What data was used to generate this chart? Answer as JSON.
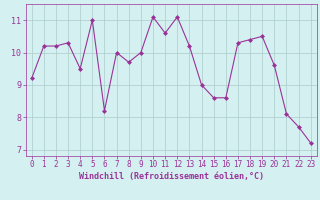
{
  "x": [
    0,
    1,
    2,
    3,
    4,
    5,
    6,
    7,
    8,
    9,
    10,
    11,
    12,
    13,
    14,
    15,
    16,
    17,
    18,
    19,
    20,
    21,
    22,
    23
  ],
  "y": [
    9.2,
    10.2,
    10.2,
    10.3,
    9.5,
    11.0,
    8.2,
    10.0,
    9.7,
    10.0,
    11.1,
    10.6,
    11.1,
    10.2,
    9.0,
    8.6,
    8.6,
    10.3,
    10.4,
    10.5,
    9.6,
    8.1,
    7.7,
    7.2
  ],
  "line_color": "#993399",
  "marker": "D",
  "marker_size": 2.0,
  "marker_linewidth": 0.5,
  "background_color": "#d5f0f0",
  "grid_color": "#aacccc",
  "xlabel": "Windchill (Refroidissement éolien,°C)",
  "xlim": [
    -0.5,
    23.5
  ],
  "ylim": [
    6.8,
    11.5
  ],
  "yticks": [
    7,
    8,
    9,
    10,
    11
  ],
  "xticks": [
    0,
    1,
    2,
    3,
    4,
    5,
    6,
    7,
    8,
    9,
    10,
    11,
    12,
    13,
    14,
    15,
    16,
    17,
    18,
    19,
    20,
    21,
    22,
    23
  ],
  "tick_color": "#993399",
  "label_color": "#993399",
  "tick_fontsize": 5.5,
  "xlabel_fontsize": 6.0,
  "linewidth": 0.8
}
